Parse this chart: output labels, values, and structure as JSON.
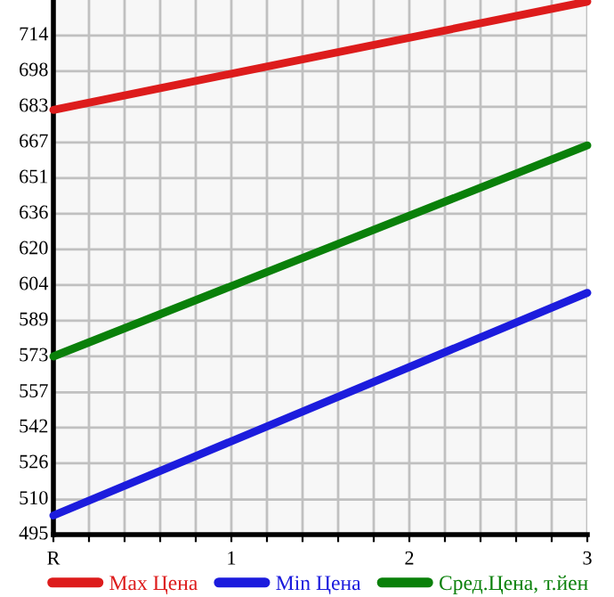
{
  "chart_data": {
    "type": "line",
    "x": [
      0,
      3
    ],
    "series": [
      {
        "name": "Max Цена",
        "color": "#dd1c1c",
        "values": [
          681.4,
          728.9
        ]
      },
      {
        "name": "Min Цена",
        "color": "#1c1cdd",
        "values": [
          503.4,
          601.1
        ]
      },
      {
        "name": "Сред.Цена, т.йен",
        "color": "#0a800a",
        "values": [
          573.2,
          665.8
        ]
      }
    ],
    "xlim": [
      0,
      3
    ],
    "xticks": [
      {
        "value": 0,
        "label": "R"
      },
      {
        "value": 0.2,
        "label": null
      },
      {
        "value": 0.4,
        "label": null
      },
      {
        "value": 0.6,
        "label": null
      },
      {
        "value": 0.8,
        "label": null
      },
      1,
      {
        "value": 1.2,
        "label": null
      },
      {
        "value": 1.4,
        "label": null
      },
      {
        "value": 1.6,
        "label": null
      },
      {
        "value": 1.8,
        "label": null
      },
      2,
      {
        "value": 2.2,
        "label": null
      },
      {
        "value": 2.4,
        "label": null
      },
      {
        "value": 2.6,
        "label": null
      },
      {
        "value": 2.8,
        "label": null
      },
      3
    ],
    "ylim": [
      495,
      729.6
    ],
    "yticks": [
      495,
      {
        "value": 510.4,
        "label": "510"
      },
      {
        "value": 526.29,
        "label": "526"
      },
      {
        "value": 541.93,
        "label": "542"
      },
      {
        "value": 557.4,
        "label": "557"
      },
      {
        "value": 573.21,
        "label": "573"
      },
      {
        "value": 588.86,
        "label": "589"
      },
      {
        "value": 604.5,
        "label": "604"
      },
      {
        "value": 620.14,
        "label": "620"
      },
      {
        "value": 635.79,
        "label": "636"
      },
      {
        "value": 651.43,
        "label": "651"
      },
      {
        "value": 667.07,
        "label": "667"
      },
      {
        "value": 682.71,
        "label": "683"
      },
      {
        "value": 698.36,
        "label": "698"
      },
      714
    ],
    "grid": true,
    "legend": "bottom",
    "marker": "none",
    "line_style": "solid"
  }
}
